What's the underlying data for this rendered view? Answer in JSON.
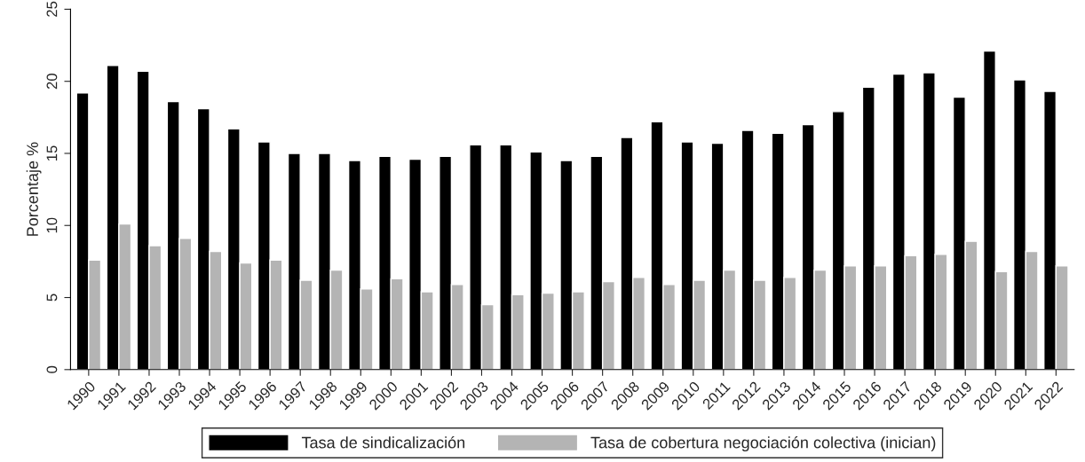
{
  "chart_data": {
    "type": "bar",
    "ylabel": "Porcentaje %",
    "categories": [
      "1990",
      "1991",
      "1992",
      "1993",
      "1994",
      "1995",
      "1996",
      "1997",
      "1998",
      "1999",
      "2000",
      "2001",
      "2002",
      "2003",
      "2004",
      "2005",
      "2006",
      "2007",
      "2008",
      "2009",
      "2010",
      "2011",
      "2012",
      "2013",
      "2014",
      "2015",
      "2016",
      "2017",
      "2018",
      "2019",
      "2020",
      "2021",
      "2022"
    ],
    "series": [
      {
        "name": "Tasa de sindicalización",
        "color": "#000000",
        "values": [
          19.2,
          21.1,
          20.7,
          18.6,
          18.1,
          16.7,
          15.8,
          15.0,
          15.0,
          14.5,
          14.8,
          14.6,
          14.8,
          15.6,
          15.6,
          15.1,
          14.5,
          14.8,
          16.1,
          17.2,
          15.8,
          15.7,
          16.6,
          16.4,
          17.0,
          17.9,
          19.6,
          20.5,
          20.6,
          18.9,
          22.1,
          20.1,
          19.3
        ]
      },
      {
        "name": "Tasa de cobertura negociación colectiva (inician)",
        "color": "#b4b4b4",
        "values": [
          7.6,
          10.1,
          8.6,
          9.1,
          8.2,
          7.4,
          7.6,
          6.2,
          6.9,
          5.6,
          6.3,
          5.4,
          5.9,
          4.5,
          5.2,
          5.3,
          5.4,
          6.1,
          6.4,
          5.9,
          6.2,
          6.9,
          6.2,
          6.4,
          6.9,
          7.2,
          7.2,
          7.9,
          8.0,
          8.9,
          6.8,
          8.2,
          7.2
        ]
      }
    ],
    "ylim": [
      0,
      25
    ],
    "yticks": [
      0,
      5,
      10,
      15,
      20,
      25
    ],
    "grid": false,
    "legend": "bottom"
  }
}
